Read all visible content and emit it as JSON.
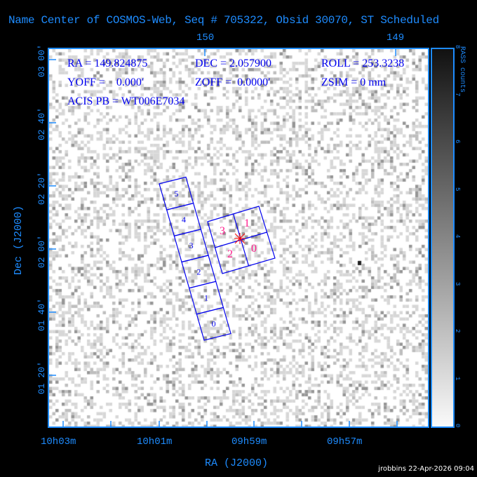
{
  "title": "Name Center of COSMOS-Web, Seq # 705322, Obsid 30070, ST Scheduled",
  "info": {
    "ra": "RA = 149.824875",
    "dec": "DEC = 2.057900",
    "roll": "ROLL = 253.3238",
    "yoff": "YOFF =    0.000′",
    "zoff": "ZOFF =  0.0000′",
    "zsim": "ZSIM = 0 mm",
    "acis_pb": "ACIS PB = WT006E7034"
  },
  "axes": {
    "xlabel": "RA (J2000)",
    "ylabel": "Dec (J2000)",
    "x_ticks": [
      "10h03m",
      "10h01m",
      "09h59m",
      "09h57m"
    ],
    "top_ticks": [
      "150",
      "149"
    ],
    "y_ticks": [
      "03 00′",
      "02 40′",
      "02 20′",
      "02 00′",
      "01 40′",
      "01 20′"
    ]
  },
  "colorbar": {
    "label": "RASS counts",
    "ticks": [
      "0",
      "1",
      "2",
      "3",
      "4",
      "5",
      "6",
      "7",
      "8"
    ]
  },
  "chips": {
    "s_array": [
      "0",
      "1",
      "2",
      "3",
      "4",
      "5"
    ],
    "i_array": [
      "0",
      "1",
      "2",
      "3"
    ],
    "s_color": "#0000ee",
    "i_color": "#ff1a8c",
    "aimpoint_color": "#ff0000"
  },
  "footer": "jrobbins 22-Apr-2026 09:04"
}
